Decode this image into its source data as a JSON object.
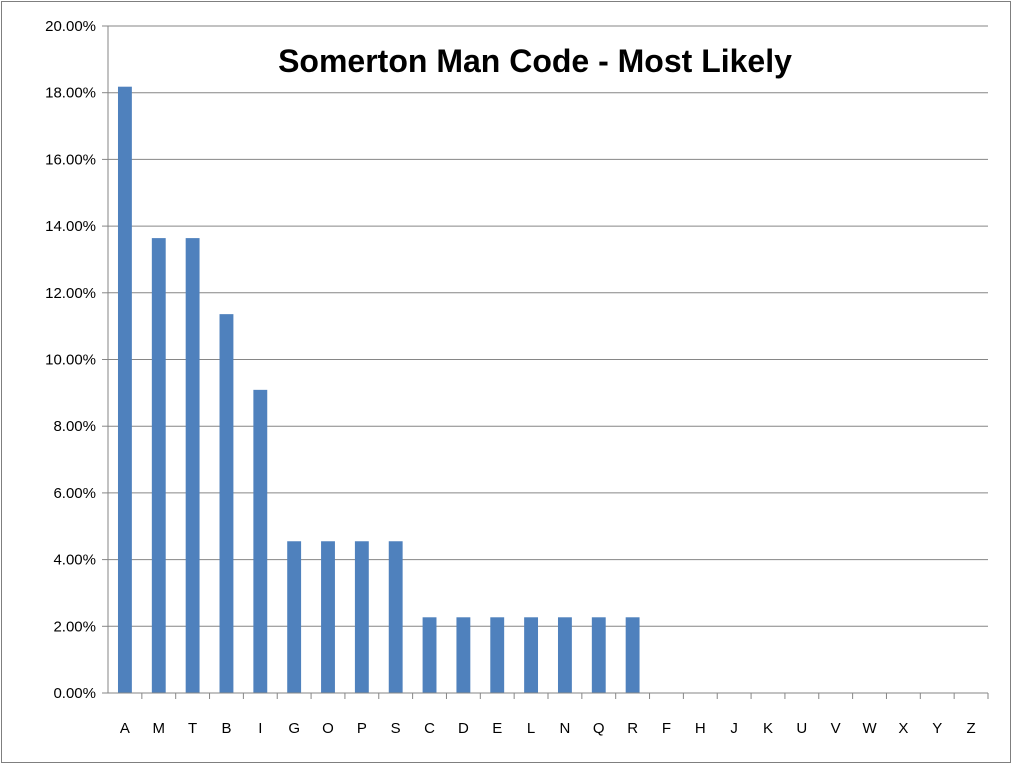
{
  "chart_data": {
    "type": "bar",
    "title": "Somerton Man Code - Most Likely",
    "xlabel": "",
    "ylabel": "",
    "categories": [
      "A",
      "M",
      "T",
      "B",
      "I",
      "G",
      "O",
      "P",
      "S",
      "C",
      "D",
      "E",
      "L",
      "N",
      "Q",
      "R",
      "F",
      "H",
      "J",
      "K",
      "U",
      "V",
      "W",
      "X",
      "Y",
      "Z"
    ],
    "values": [
      18.18,
      13.64,
      13.64,
      11.36,
      9.09,
      4.55,
      4.55,
      4.55,
      4.55,
      2.27,
      2.27,
      2.27,
      2.27,
      2.27,
      2.27,
      2.27,
      0,
      0,
      0,
      0,
      0,
      0,
      0,
      0,
      0,
      0
    ],
    "ylim": [
      0,
      20
    ],
    "yticks": [
      "0.00%",
      "2.00%",
      "4.00%",
      "6.00%",
      "8.00%",
      "10.00%",
      "12.00%",
      "14.00%",
      "16.00%",
      "18.00%",
      "20.00%"
    ],
    "grid": true,
    "legend": "none",
    "bar_color": "#4f81bd"
  }
}
